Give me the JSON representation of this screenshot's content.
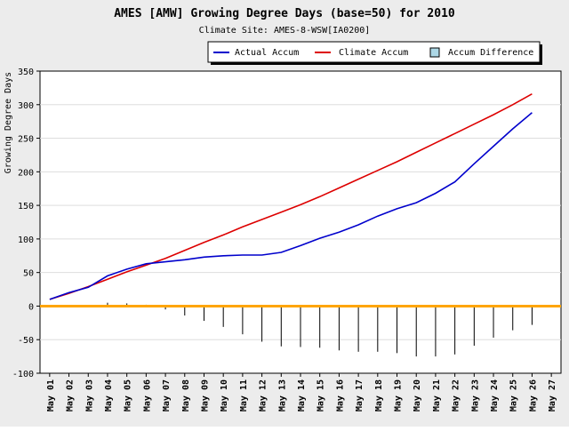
{
  "chart_data": {
    "type": "line",
    "title": "AMES [AMW] Growing Degree Days (base=50) for 2010",
    "subtitle": "Climate Site: AMES-8-WSW[IA0200]",
    "ylabel": "Growing Degree Days",
    "xlabel": "",
    "ylim": [
      -100,
      350
    ],
    "yticks": [
      -100,
      -50,
      0,
      50,
      100,
      150,
      200,
      250,
      300,
      350
    ],
    "xticks": [
      "May 01",
      "May 02",
      "May 03",
      "May 04",
      "May 05",
      "May 06",
      "May 07",
      "May 08",
      "May 09",
      "May 10",
      "May 11",
      "May 12",
      "May 13",
      "May 14",
      "May 15",
      "May 16",
      "May 17",
      "May 18",
      "May 19",
      "May 20",
      "May 21",
      "May 22",
      "May 23",
      "May 24",
      "May 25",
      "May 26",
      "May 27"
    ],
    "grid": true,
    "legend_position": "top-right",
    "colors": {
      "actual": "#0000cc",
      "climate": "#dd0000",
      "difference": "#add8e6",
      "zero_line": "#ffa500",
      "difference_bar": "#000000"
    },
    "series": [
      {
        "name": "Actual Accum",
        "values": [
          10,
          20,
          28,
          45,
          55,
          63,
          66,
          69,
          73,
          75,
          76,
          76,
          80,
          90,
          101,
          110,
          121,
          134,
          145,
          154,
          168,
          185,
          212,
          238,
          264,
          288
        ]
      },
      {
        "name": "Climate Accum",
        "values": [
          10,
          19,
          29,
          40,
          51,
          61,
          71,
          83,
          95,
          106,
          118,
          129,
          140,
          151,
          163,
          176,
          189,
          202,
          215,
          229,
          243,
          257,
          271,
          285,
          300,
          316
        ]
      },
      {
        "name": "Accum Difference",
        "values": [
          0,
          1,
          -1,
          5,
          4,
          2,
          -5,
          -14,
          -22,
          -31,
          -42,
          -53,
          -60,
          -61,
          -62,
          -66,
          -68,
          -68,
          -70,
          -75,
          -75,
          -72,
          -59,
          -47,
          -36,
          -28
        ]
      }
    ]
  }
}
